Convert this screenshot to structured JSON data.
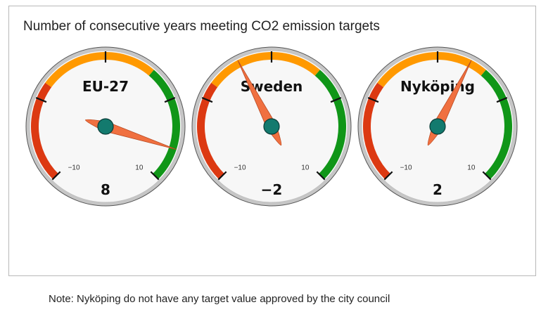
{
  "title": "Number of consecutive years meeting CO2 emission targets",
  "note": "Note: Nyköping do not have any target value approved by the city council",
  "colors": {
    "red_band": "#dc3912",
    "yellow_band": "#ff9900",
    "green_band": "#109618",
    "needle": "#f07040",
    "hub": "#137a6e",
    "face": "#f7f7f7",
    "rim": "#c6c6c6"
  },
  "chart_data": [
    {
      "type": "gauge",
      "title": "EU-27",
      "value": 8,
      "value_label": "8",
      "min": -10,
      "max": 10,
      "min_label": "−10",
      "max_label": "10",
      "bands": [
        {
          "from": -10,
          "to": -4,
          "color": "red"
        },
        {
          "from": -4,
          "to": 3,
          "color": "yellow"
        },
        {
          "from": 3,
          "to": 10,
          "color": "green"
        }
      ]
    },
    {
      "type": "gauge",
      "title": "Sweden",
      "value": -2,
      "value_label": "−2",
      "min": -10,
      "max": 10,
      "min_label": "−10",
      "max_label": "10",
      "bands": [
        {
          "from": -10,
          "to": -4,
          "color": "red"
        },
        {
          "from": -4,
          "to": 3,
          "color": "yellow"
        },
        {
          "from": 3,
          "to": 10,
          "color": "green"
        }
      ]
    },
    {
      "type": "gauge",
      "title": "Nyköping",
      "value": 2,
      "value_label": "2",
      "min": -10,
      "max": 10,
      "min_label": "−10",
      "max_label": "10",
      "bands": [
        {
          "from": -10,
          "to": -4,
          "color": "red"
        },
        {
          "from": -4,
          "to": 3,
          "color": "yellow"
        },
        {
          "from": 3,
          "to": 10,
          "color": "green"
        }
      ]
    }
  ]
}
